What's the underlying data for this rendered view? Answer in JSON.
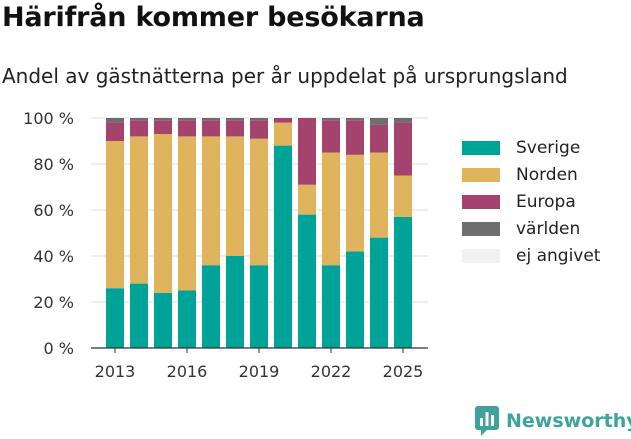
{
  "title": "Härifrån kommer besökarna",
  "subtitle": "Andel av gästnätterna per år uppdelat på ursprungsland",
  "brand": {
    "name": "Newsworthy",
    "icon": "newsworthy-logo-icon"
  },
  "colors": {
    "Sverige": "#00a398",
    "Norden": "#dfb45c",
    "Europa": "#a4436e",
    "världen": "#6e6e6e",
    "ej angivet": "#f2f2f2"
  },
  "chart_data": {
    "type": "bar",
    "stacked": true,
    "x": [
      2013,
      2014,
      2015,
      2016,
      2017,
      2018,
      2019,
      2020,
      2021,
      2022,
      2023,
      2024,
      2025
    ],
    "xticks": [
      "2013",
      "2016",
      "2019",
      "2022",
      "2025"
    ],
    "yticks": [
      "0 %",
      "20 %",
      "40 %",
      "60 %",
      "80 %",
      "100 %"
    ],
    "ylim": [
      0,
      100
    ],
    "grid": true,
    "legend_position": "right",
    "series": [
      {
        "name": "Sverige",
        "values": [
          26,
          28,
          24,
          25,
          36,
          40,
          36,
          88,
          58,
          36,
          42,
          48,
          57
        ]
      },
      {
        "name": "Norden",
        "values": [
          64,
          64,
          69,
          67,
          56,
          52,
          55,
          10,
          13,
          49,
          42,
          37,
          18
        ]
      },
      {
        "name": "Europa",
        "values": [
          8,
          7,
          6,
          7,
          7,
          7,
          8,
          2,
          29,
          14,
          15,
          12,
          23
        ]
      },
      {
        "name": "världen",
        "values": [
          2,
          1,
          1,
          1,
          1,
          1,
          1,
          0,
          0,
          1,
          1,
          3,
          2
        ]
      },
      {
        "name": "ej angivet",
        "values": [
          0,
          0,
          0,
          0,
          0,
          0,
          0,
          0,
          0,
          0,
          0,
          0,
          0
        ]
      }
    ]
  }
}
